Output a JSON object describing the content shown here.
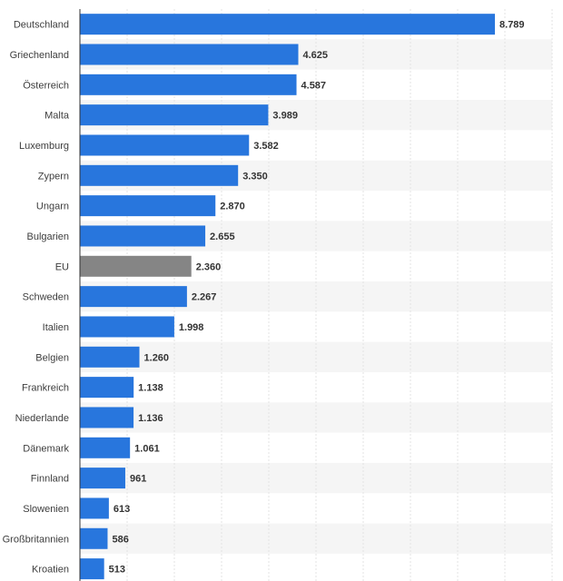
{
  "chart_data": {
    "type": "bar",
    "orientation": "horizontal",
    "categories": [
      "Deutschland",
      "Griechenland",
      "Österreich",
      "Malta",
      "Luxemburg",
      "Zypern",
      "Ungarn",
      "Bulgarien",
      "EU",
      "Schweden",
      "Italien",
      "Belgien",
      "Frankreich",
      "Niederlande",
      "Dänemark",
      "Finnland",
      "Slowenien",
      "Großbritannien",
      "Kroatien"
    ],
    "values": [
      8789,
      4625,
      4587,
      3989,
      3582,
      3350,
      2870,
      2655,
      2360,
      2267,
      1998,
      1260,
      1138,
      1136,
      1061,
      961,
      613,
      586,
      513
    ],
    "value_labels": [
      "8.789",
      "4.625",
      "4.587",
      "3.989",
      "3.582",
      "3.350",
      "2.870",
      "2.655",
      "2.360",
      "2.267",
      "1.998",
      "1.260",
      "1.138",
      "1.136",
      "1.061",
      "961",
      "613",
      "586",
      "513"
    ],
    "highlight_category": "EU",
    "xlim": [
      0,
      10000
    ],
    "grid": true,
    "legend": "none",
    "colors": {
      "bar": "#2876dd",
      "highlight": "#858585",
      "stripe": "#f5f5f5",
      "grid": "#e3e3e3",
      "axis": "#333333"
    }
  }
}
